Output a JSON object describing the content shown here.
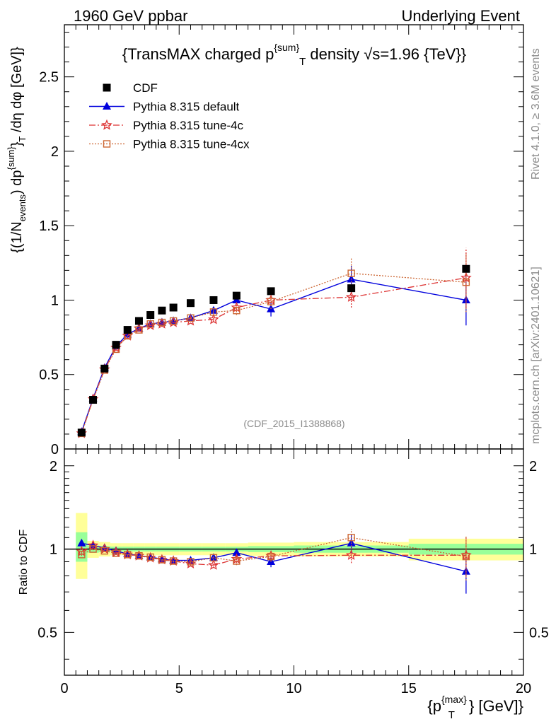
{
  "header": {
    "left": "1960 GeV ppbar",
    "right": "Underlying Event"
  },
  "side_labels": {
    "rivet": "Rivet 4.1.0, ≥ 3.6M events",
    "mcplots": "mcplots.cern.ch [arXiv:2401.10621]"
  },
  "analysis_id": "(CDF_2015_I1388868)",
  "chart_data": [
    {
      "type": "scatter",
      "title": "{TransMAX charged p^{sum}_T density √s=1.96 {TeV}}",
      "title_parts": {
        "pre": "{TransMAX charged p",
        "sup": "{sum}",
        "sub": "T",
        "post": " density √s=1.96 {TeV}}"
      },
      "ylabel": "{(1/N_events) dp^{sum}_T /dη dφ [GeV]}",
      "ylabel_parts": [
        "{(1/N",
        "events",
        ") dp",
        "{sum}",
        "}",
        "T",
        " /dη  dφ [GeV]}"
      ],
      "xlim": [
        0,
        20
      ],
      "ylim": [
        0,
        2.85
      ],
      "yticks": [
        0,
        0.5,
        1,
        1.5,
        2,
        2.5
      ],
      "ytick_labels": [
        "0",
        "0.5",
        "1",
        "1.5",
        "2",
        "2.5"
      ],
      "legend_position": "top-left",
      "series": [
        {
          "name": "CDF",
          "color": "#000000",
          "marker": "square",
          "x": [
            0.75,
            1.25,
            1.75,
            2.25,
            2.75,
            3.25,
            3.75,
            4.25,
            4.75,
            5.5,
            6.5,
            7.5,
            9.0,
            12.5,
            17.5
          ],
          "y": [
            0.11,
            0.33,
            0.54,
            0.7,
            0.8,
            0.86,
            0.9,
            0.93,
            0.95,
            0.98,
            1.0,
            1.03,
            1.06,
            1.08,
            1.21
          ]
        },
        {
          "name": "Pythia 8.315 default",
          "color": "#0000dd",
          "marker": "triangle",
          "x": [
            0.75,
            1.25,
            1.75,
            2.25,
            2.75,
            3.25,
            3.75,
            4.25,
            4.75,
            5.5,
            6.5,
            7.5,
            9.0,
            12.5,
            17.5
          ],
          "y": [
            0.115,
            0.34,
            0.545,
            0.69,
            0.77,
            0.81,
            0.84,
            0.85,
            0.86,
            0.88,
            0.93,
            1.0,
            0.94,
            1.14,
            1.0
          ],
          "err": [
            0.005,
            0.005,
            0.005,
            0.005,
            0.005,
            0.005,
            0.005,
            0.005,
            0.006,
            0.008,
            0.012,
            0.02,
            0.05,
            0.09,
            0.17
          ]
        },
        {
          "name": "Pythia 8.315 tune-4c",
          "color": "#dd3333",
          "marker": "star",
          "x": [
            0.75,
            1.25,
            1.75,
            2.25,
            2.75,
            3.25,
            3.75,
            4.25,
            4.75,
            5.5,
            6.5,
            7.5,
            9.0,
            12.5,
            17.5
          ],
          "y": [
            0.105,
            0.335,
            0.535,
            0.68,
            0.76,
            0.81,
            0.83,
            0.84,
            0.85,
            0.86,
            0.87,
            0.95,
            1.0,
            1.02,
            1.15
          ],
          "err": [
            0.005,
            0.005,
            0.005,
            0.005,
            0.005,
            0.005,
            0.005,
            0.005,
            0.006,
            0.008,
            0.015,
            0.03,
            0.04,
            0.07,
            0.2
          ]
        },
        {
          "name": "Pythia 8.315 tune-4cx",
          "color": "#cc6633",
          "marker": "open-square",
          "x": [
            0.75,
            1.25,
            1.75,
            2.25,
            2.75,
            3.25,
            3.75,
            4.25,
            4.75,
            5.5,
            6.5,
            7.5,
            9.0,
            12.5,
            17.5
          ],
          "y": [
            0.105,
            0.33,
            0.53,
            0.67,
            0.76,
            0.8,
            0.84,
            0.85,
            0.86,
            0.88,
            0.92,
            0.93,
            0.99,
            1.18,
            1.12
          ],
          "err": [
            0.005,
            0.005,
            0.005,
            0.005,
            0.005,
            0.005,
            0.005,
            0.005,
            0.006,
            0.01,
            0.015,
            0.03,
            0.05,
            0.1,
            0.2
          ]
        }
      ]
    },
    {
      "type": "scatter",
      "title": "",
      "ylabel": "Ratio to CDF",
      "xlabel": "{p_T^{max}} [GeV]}",
      "xlabel_parts": {
        "pre": "{p",
        "sup": "{max}",
        "sub": "T",
        "post": "} [GeV]}"
      },
      "xlim": [
        0,
        20
      ],
      "ylim": [
        0.35,
        2.3
      ],
      "yticks": [
        0.5,
        1,
        2
      ],
      "ytick_labels": [
        "0.5",
        "1",
        "2"
      ],
      "xticks": [
        0,
        5,
        10,
        15,
        20
      ],
      "xtick_labels": [
        "0",
        "5",
        "10",
        "15",
        "20"
      ],
      "reference_line": 1,
      "bands": [
        {
          "x0": 0.5,
          "x1": 1.0,
          "yellow": [
            0.78,
            1.35
          ],
          "green": [
            0.9,
            1.15
          ]
        },
        {
          "x0": 1.0,
          "x1": 1.5,
          "yellow": [
            0.93,
            1.07
          ],
          "green": [
            0.97,
            1.03
          ]
        },
        {
          "x0": 1.5,
          "x1": 2.0,
          "yellow": [
            0.94,
            1.06
          ],
          "green": [
            0.975,
            1.025
          ]
        },
        {
          "x0": 2.0,
          "x1": 2.5,
          "yellow": [
            0.95,
            1.05
          ],
          "green": [
            0.98,
            1.02
          ]
        },
        {
          "x0": 2.5,
          "x1": 3.0,
          "yellow": [
            0.95,
            1.05
          ],
          "green": [
            0.98,
            1.02
          ]
        },
        {
          "x0": 3.0,
          "x1": 3.5,
          "yellow": [
            0.95,
            1.05
          ],
          "green": [
            0.98,
            1.02
          ]
        },
        {
          "x0": 3.5,
          "x1": 4.0,
          "yellow": [
            0.95,
            1.05
          ],
          "green": [
            0.98,
            1.02
          ]
        },
        {
          "x0": 4.0,
          "x1": 4.5,
          "yellow": [
            0.95,
            1.05
          ],
          "green": [
            0.98,
            1.02
          ]
        },
        {
          "x0": 4.5,
          "x1": 5.0,
          "yellow": [
            0.95,
            1.05
          ],
          "green": [
            0.98,
            1.02
          ]
        },
        {
          "x0": 5.0,
          "x1": 6.0,
          "yellow": [
            0.95,
            1.05
          ],
          "green": [
            0.98,
            1.02
          ]
        },
        {
          "x0": 6.0,
          "x1": 7.0,
          "yellow": [
            0.95,
            1.05
          ],
          "green": [
            0.98,
            1.02
          ]
        },
        {
          "x0": 7.0,
          "x1": 8.0,
          "yellow": [
            0.95,
            1.05
          ],
          "green": [
            0.98,
            1.02
          ]
        },
        {
          "x0": 8.0,
          "x1": 10.0,
          "yellow": [
            0.945,
            1.055
          ],
          "green": [
            0.975,
            1.025
          ]
        },
        {
          "x0": 10.0,
          "x1": 15.0,
          "yellow": [
            0.94,
            1.06
          ],
          "green": [
            0.97,
            1.03
          ]
        },
        {
          "x0": 15.0,
          "x1": 20.0,
          "yellow": [
            0.91,
            1.09
          ],
          "green": [
            0.955,
            1.045
          ]
        }
      ],
      "series": [
        {
          "name": "Pythia 8.315 default",
          "color": "#0000dd",
          "marker": "triangle",
          "x": [
            0.75,
            1.25,
            1.75,
            2.25,
            2.75,
            3.25,
            3.75,
            4.25,
            4.75,
            5.5,
            6.5,
            7.5,
            9.0,
            12.5,
            17.5
          ],
          "y": [
            1.05,
            1.03,
            1.01,
            0.985,
            0.96,
            0.945,
            0.935,
            0.92,
            0.91,
            0.91,
            0.93,
            0.97,
            0.9,
            1.05,
            0.83
          ],
          "err": [
            0.01,
            0.01,
            0.01,
            0.01,
            0.01,
            0.01,
            0.01,
            0.01,
            0.01,
            0.01,
            0.015,
            0.03,
            0.04,
            0.08,
            0.14
          ]
        },
        {
          "name": "Pythia 8.315 tune-4c",
          "color": "#dd3333",
          "marker": "star",
          "x": [
            0.75,
            1.25,
            1.75,
            2.25,
            2.75,
            3.25,
            3.75,
            4.25,
            4.75,
            5.5,
            6.5,
            7.5,
            9.0,
            12.5,
            17.5
          ],
          "y": [
            0.98,
            1.03,
            1.0,
            0.975,
            0.955,
            0.945,
            0.93,
            0.915,
            0.905,
            0.885,
            0.875,
            0.92,
            0.945,
            0.95,
            0.95
          ],
          "err": [
            0.01,
            0.01,
            0.01,
            0.01,
            0.01,
            0.01,
            0.01,
            0.01,
            0.01,
            0.01,
            0.02,
            0.03,
            0.04,
            0.06,
            0.15
          ]
        },
        {
          "name": "Pythia 8.315 tune-4cx",
          "color": "#cc6633",
          "marker": "open-square",
          "x": [
            0.75,
            1.25,
            1.75,
            2.25,
            2.75,
            3.25,
            3.75,
            4.25,
            4.75,
            5.5,
            6.5,
            7.5,
            9.0,
            12.5,
            17.5
          ],
          "y": [
            0.955,
            1.0,
            0.985,
            0.965,
            0.955,
            0.945,
            0.935,
            0.915,
            0.905,
            0.9,
            0.93,
            0.905,
            0.94,
            1.1,
            0.94
          ],
          "err": [
            0.01,
            0.01,
            0.01,
            0.01,
            0.01,
            0.01,
            0.01,
            0.01,
            0.01,
            0.01,
            0.02,
            0.03,
            0.04,
            0.08,
            0.17
          ]
        }
      ]
    }
  ]
}
